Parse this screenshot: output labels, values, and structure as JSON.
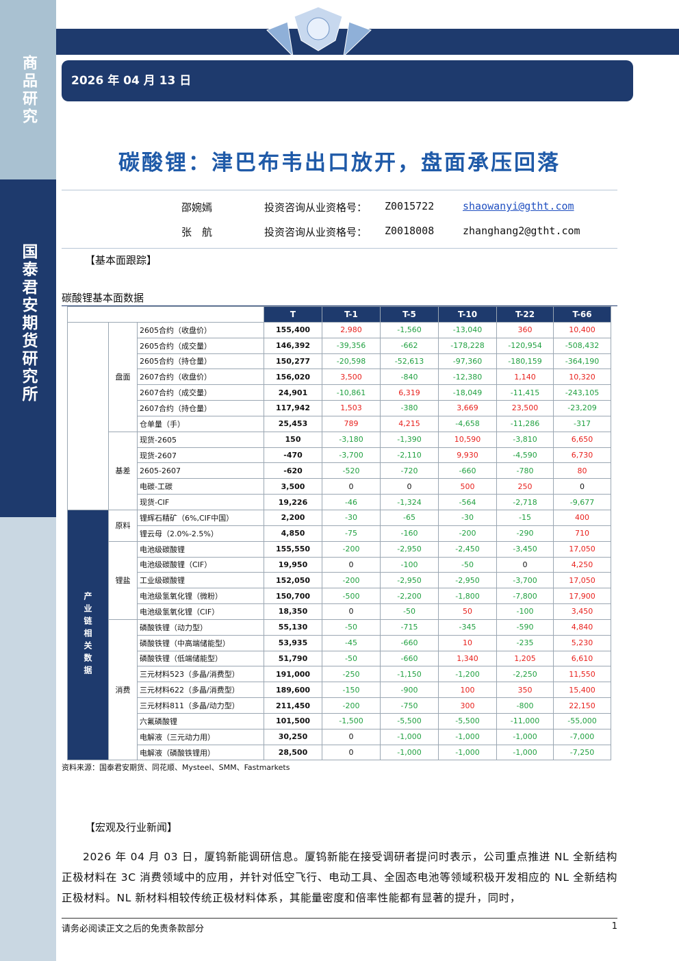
{
  "sidebar": {
    "top": "商品研究",
    "main": "国泰君安期货研究所"
  },
  "header": {
    "date": "2026 年 04 月 13 日",
    "title": "碳酸锂：津巴布韦出口放开，盘面承压回落"
  },
  "authors": [
    {
      "name": "邵婉嫣",
      "license_label": "投资咨询从业资格号：",
      "license": "Z0015722",
      "email": "shaowanyi@gtht.com"
    },
    {
      "name": "张　航",
      "license_label": "投资咨询从业资格号：",
      "license": "Z0018008",
      "email": "zhanghang2@gtht.com"
    }
  ],
  "section1": "【基本面跟踪】",
  "table": {
    "caption": "碳酸锂基本面数据",
    "columns": [
      "T",
      "T-1",
      "T-5",
      "T-10",
      "T-22",
      "T-66"
    ],
    "blocks": [
      {
        "groups": [
          {
            "name": "盘面",
            "rows": [
              {
                "item": "2605合约（收盘价）",
                "values": [
                  "155,400",
                  "2,980",
                  "-1,560",
                  "-13,040",
                  "360",
                  "10,400"
                ]
              },
              {
                "item": "2605合约（成交量）",
                "values": [
                  "146,392",
                  "-39,356",
                  "-662",
                  "-178,228",
                  "-120,954",
                  "-508,432"
                ]
              },
              {
                "item": "2605合约（持仓量）",
                "values": [
                  "150,277",
                  "-20,598",
                  "-52,613",
                  "-97,360",
                  "-180,159",
                  "-364,190"
                ]
              },
              {
                "item": "2607合约（收盘价）",
                "values": [
                  "156,020",
                  "3,500",
                  "-840",
                  "-12,380",
                  "1,140",
                  "10,320"
                ]
              },
              {
                "item": "2607合约（成交量）",
                "values": [
                  "24,901",
                  "-10,861",
                  "6,319",
                  "-18,049",
                  "-11,415",
                  "-243,105"
                ]
              },
              {
                "item": "2607合约（持仓量）",
                "values": [
                  "117,942",
                  "1,503",
                  "-380",
                  "3,669",
                  "23,500",
                  "-23,209"
                ]
              },
              {
                "item": "仓单量（手）",
                "values": [
                  "25,453",
                  "789",
                  "4,215",
                  "-4,658",
                  "-11,286",
                  "-317"
                ]
              }
            ]
          },
          {
            "name": "基差",
            "rows": [
              {
                "item": "现货-2605",
                "values": [
                  "150",
                  "-3,180",
                  "-1,390",
                  "10,590",
                  "-3,810",
                  "6,650"
                ]
              },
              {
                "item": "现货-2607",
                "values": [
                  "-470",
                  "-3,700",
                  "-2,110",
                  "9,930",
                  "-4,590",
                  "6,730"
                ]
              },
              {
                "item": "2605-2607",
                "values": [
                  "-620",
                  "-520",
                  "-720",
                  "-660",
                  "-780",
                  "80"
                ]
              },
              {
                "item": "电碳-工碳",
                "values": [
                  "3,500",
                  "0",
                  "0",
                  "500",
                  "250",
                  "0"
                ]
              },
              {
                "item": "现货-CIF",
                "values": [
                  "19,226",
                  "-46",
                  "-1,324",
                  "-564",
                  "-2,718",
                  "-9,677"
                ]
              }
            ]
          }
        ]
      },
      {
        "label": "产业链相关数据",
        "groups": [
          {
            "name": "原料",
            "rows": [
              {
                "item": "锂辉石精矿（6%,CIF中国）",
                "values": [
                  "2,200",
                  "-30",
                  "-65",
                  "-30",
                  "-15",
                  "400"
                ]
              },
              {
                "item": "锂云母（2.0%-2.5%）",
                "values": [
                  "4,850",
                  "-75",
                  "-160",
                  "-200",
                  "-290",
                  "710"
                ]
              }
            ]
          },
          {
            "name": "锂盐",
            "rows": [
              {
                "item": "电池级碳酸锂",
                "values": [
                  "155,550",
                  "-200",
                  "-2,950",
                  "-2,450",
                  "-3,450",
                  "17,050"
                ]
              },
              {
                "item": "电池级碳酸锂（CIF）",
                "values": [
                  "19,950",
                  "0",
                  "-100",
                  "-50",
                  "0",
                  "4,250"
                ]
              },
              {
                "item": "工业级碳酸锂",
                "values": [
                  "152,050",
                  "-200",
                  "-2,950",
                  "-2,950",
                  "-3,700",
                  "17,050"
                ]
              },
              {
                "item": "电池级氢氧化锂（微粉）",
                "values": [
                  "150,700",
                  "-500",
                  "-2,200",
                  "-1,800",
                  "-7,800",
                  "17,900"
                ]
              },
              {
                "item": "电池级氢氧化锂（CIF）",
                "values": [
                  "18,350",
                  "0",
                  "-50",
                  "50",
                  "-100",
                  "3,450"
                ]
              }
            ]
          },
          {
            "name": "消费",
            "rows": [
              {
                "item": "磷酸铁锂（动力型）",
                "values": [
                  "55,130",
                  "-50",
                  "-715",
                  "-345",
                  "-590",
                  "4,840"
                ]
              },
              {
                "item": "磷酸铁锂（中高端储能型）",
                "values": [
                  "53,935",
                  "-45",
                  "-660",
                  "10",
                  "-235",
                  "5,230"
                ]
              },
              {
                "item": "磷酸铁锂（低端储能型）",
                "values": [
                  "51,790",
                  "-50",
                  "-660",
                  "1,340",
                  "1,205",
                  "6,610"
                ]
              },
              {
                "item": "三元材料523（多晶/消费型）",
                "values": [
                  "191,000",
                  "-250",
                  "-1,150",
                  "-1,200",
                  "-2,250",
                  "11,550"
                ]
              },
              {
                "item": "三元材料622（多晶/消费型）",
                "values": [
                  "189,600",
                  "-150",
                  "-900",
                  "100",
                  "350",
                  "15,400"
                ]
              },
              {
                "item": "三元材料811（多晶/动力型）",
                "values": [
                  "211,450",
                  "-200",
                  "-750",
                  "300",
                  "-800",
                  "22,150"
                ]
              },
              {
                "item": "六氟磷酸锂",
                "values": [
                  "101,500",
                  "-1,500",
                  "-5,500",
                  "-5,500",
                  "-11,000",
                  "-55,000"
                ]
              },
              {
                "item": "电解液（三元动力用）",
                "values": [
                  "30,250",
                  "0",
                  "-1,000",
                  "-1,000",
                  "-1,000",
                  "-7,000"
                ]
              },
              {
                "item": "电解液（磷酸铁锂用）",
                "values": [
                  "28,500",
                  "0",
                  "-1,000",
                  "-1,000",
                  "-1,000",
                  "-7,250"
                ]
              }
            ]
          }
        ]
      }
    ],
    "source": "资料来源：国泰君安期货、同花顺、Mysteel、SMM、Fastmarkets"
  },
  "section2": "【宏观及行业新闻】",
  "paragraph": "2026 年 04 月 03 日，厦钨新能调研信息。厦钨新能在接受调研者提问时表示，公司重点推进 NL 全新结构正极材料在 3C 消费领域中的应用，并针对低空飞行、电动工具、全固态电池等领域积极开发相应的 NL 全新结构正极材料。NL 新材料相较传统正极材料体系，其能量密度和倍率性能都有显著的提升，同时，",
  "footer": {
    "disclaimer": "请务必阅读正文之后的免责条款部分",
    "page": "1"
  }
}
